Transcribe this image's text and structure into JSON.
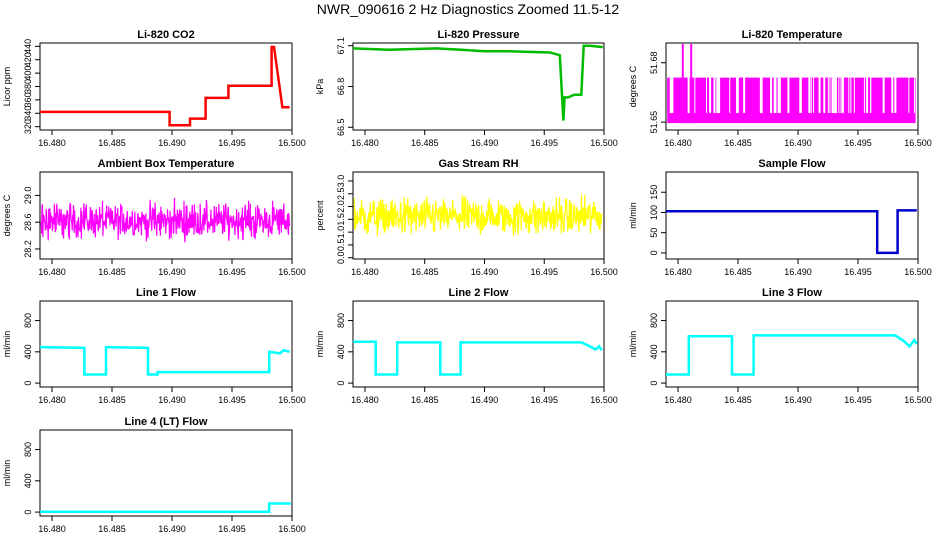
{
  "page": {
    "title": "NWR_090616  2 Hz Diagnostics Zoomed 11.5-12"
  },
  "chart_data": [
    {
      "id": "co2",
      "type": "line",
      "title": "Li-820 CO2",
      "ylabel": "Licor ppm",
      "color": "#ff0000",
      "xlim": [
        16.479,
        16.5
      ],
      "ylim": [
        315,
        445
      ],
      "yticks": [
        "320",
        "340",
        "360",
        "380",
        "400",
        "420",
        "440"
      ],
      "xticks": [
        "16.480",
        "16.485",
        "16.490",
        "16.495",
        "16.500"
      ],
      "series": [
        {
          "x": [
            16.479,
            16.4898,
            16.4898,
            16.4915,
            16.4915,
            16.4928,
            16.4928,
            16.4947,
            16.4947,
            16.4983,
            16.4983,
            16.4985,
            16.4992,
            16.4998
          ],
          "y": [
            342,
            342,
            322,
            322,
            332,
            332,
            363,
            363,
            381,
            381,
            439,
            439,
            349,
            349
          ]
        }
      ]
    },
    {
      "id": "pressure",
      "type": "line",
      "title": "Li-820 Pressure",
      "ylabel": "kPa",
      "color": "#00bb00",
      "xlim": [
        16.479,
        16.5
      ],
      "ylim": [
        66.48,
        67.12
      ],
      "yticks": [
        "66.5",
        "66.8",
        "67.1"
      ],
      "xticks": [
        "16.480",
        "16.485",
        "16.490",
        "16.495",
        "16.500"
      ],
      "series": [
        {
          "x": [
            16.479,
            16.482,
            16.486,
            16.488,
            16.49,
            16.492,
            16.4955,
            16.4963,
            16.4966,
            16.4967,
            16.497,
            16.4975,
            16.4981,
            16.4983,
            16.4988,
            16.4999
          ],
          "y": [
            67.08,
            67.07,
            67.08,
            67.07,
            67.06,
            67.06,
            67.05,
            67.03,
            66.55,
            66.72,
            66.72,
            66.74,
            66.74,
            67.1,
            67.1,
            67.09
          ]
        }
      ]
    },
    {
      "id": "licor_temp",
      "type": "line",
      "title": "Li-820 Temperature",
      "ylabel": "degrees C",
      "color": "#ff00ff",
      "xlim": [
        16.479,
        16.5
      ],
      "ylim": [
        51.646,
        51.69
      ],
      "yticks": [
        "51.65",
        "51.68"
      ],
      "xticks": [
        "16.480",
        "16.485",
        "16.490",
        "16.495",
        "16.500"
      ],
      "series": [
        {
          "low": 51.6495,
          "high": 51.6725,
          "spike": 51.6895,
          "spike_x": [
            16.4804,
            16.4811
          ]
        }
      ]
    },
    {
      "id": "box_temp",
      "type": "line",
      "title": "Ambient Box Temperature",
      "ylabel": "degrees C",
      "color": "#ff00ff",
      "xlim": [
        16.479,
        16.5
      ],
      "ylim": [
        28.05,
        29.35
      ],
      "yticks": [
        "28.2",
        "28.6",
        "29.0"
      ],
      "xticks": [
        "16.480",
        "16.485",
        "16.490",
        "16.495",
        "16.500"
      ],
      "series": [
        {
          "mean": 28.62,
          "noise": 0.13
        }
      ]
    },
    {
      "id": "rh",
      "type": "line",
      "title": "Gas Stream RH",
      "ylabel": "percent",
      "color": "#ffff00",
      "xlim": [
        16.479,
        16.5
      ],
      "ylim": [
        -0.05,
        3.35
      ],
      "yticks": [
        "0.0",
        "0.5",
        "1.0",
        "1.5",
        "2.0",
        "2.5",
        "3.0"
      ],
      "xticks": [
        "16.480",
        "16.485",
        "16.490",
        "16.495",
        "16.500"
      ],
      "series": [
        {
          "mean": 1.6,
          "noise": 0.35
        }
      ]
    },
    {
      "id": "sample_flow",
      "type": "line",
      "title": "Sample Flow",
      "ylabel": "ml/min",
      "color": "#0000cc",
      "xlim": [
        16.479,
        16.5
      ],
      "ylim": [
        -15,
        200
      ],
      "yticks": [
        "0",
        "50",
        "100",
        "150"
      ],
      "xticks": [
        "16.480",
        "16.485",
        "16.490",
        "16.495",
        "16.500"
      ],
      "series": [
        {
          "x": [
            16.479,
            16.4966,
            16.4966,
            16.4983,
            16.4983,
            16.4999
          ],
          "y": [
            103,
            103,
            0,
            0,
            105,
            105
          ]
        }
      ]
    },
    {
      "id": "line1",
      "type": "line",
      "title": "Line 1 Flow",
      "ylabel": "ml/min",
      "color": "#00ffff",
      "xlim": [
        16.479,
        16.5
      ],
      "ylim": [
        -50,
        1050
      ],
      "yticks": [
        "0",
        "400",
        "800"
      ],
      "xticks": [
        "16.480",
        "16.485",
        "16.490",
        "16.495",
        "16.500"
      ],
      "series": [
        {
          "x": [
            16.479,
            16.4827,
            16.4827,
            16.4845,
            16.4845,
            16.488,
            16.488,
            16.4888,
            16.4888,
            16.4981,
            16.4981,
            16.499,
            16.4993,
            16.4998
          ],
          "y": [
            460,
            450,
            110,
            110,
            460,
            450,
            110,
            110,
            140,
            140,
            400,
            380,
            420,
            400
          ]
        }
      ]
    },
    {
      "id": "line2",
      "type": "line",
      "title": "Line 2 Flow",
      "ylabel": "ml/min",
      "color": "#00ffff",
      "xlim": [
        16.479,
        16.5
      ],
      "ylim": [
        -50,
        1050
      ],
      "yticks": [
        "0",
        "400",
        "800"
      ],
      "xticks": [
        "16.480",
        "16.485",
        "16.490",
        "16.495",
        "16.500"
      ],
      "series": [
        {
          "x": [
            16.479,
            16.4809,
            16.4809,
            16.4827,
            16.4827,
            16.4863,
            16.4863,
            16.488,
            16.488,
            16.4981,
            16.4988,
            16.4993,
            16.4996,
            16.4998
          ],
          "y": [
            530,
            530,
            110,
            110,
            520,
            520,
            110,
            110,
            520,
            520,
            470,
            430,
            470,
            420
          ]
        }
      ]
    },
    {
      "id": "line3",
      "type": "line",
      "title": "Line 3 Flow",
      "ylabel": "ml/min",
      "color": "#00ffff",
      "xlim": [
        16.479,
        16.5
      ],
      "ylim": [
        -50,
        1050
      ],
      "yticks": [
        "0",
        "400",
        "800"
      ],
      "xticks": [
        "16.480",
        "16.485",
        "16.490",
        "16.495",
        "16.500"
      ],
      "series": [
        {
          "x": [
            16.479,
            16.4809,
            16.4809,
            16.4845,
            16.4845,
            16.4863,
            16.4863,
            16.4981,
            16.4988,
            16.4993,
            16.4997,
            16.4999
          ],
          "y": [
            110,
            110,
            600,
            600,
            110,
            110,
            610,
            610,
            540,
            470,
            550,
            500
          ]
        }
      ]
    },
    {
      "id": "line4",
      "type": "line",
      "title": "Line 4 (LT) Flow",
      "ylabel": "ml/min",
      "color": "#00ffff",
      "xlim": [
        16.479,
        16.5
      ],
      "ylim": [
        -50,
        1050
      ],
      "yticks": [
        "0",
        "400",
        "800"
      ],
      "xticks": [
        "16.480",
        "16.485",
        "16.490",
        "16.495",
        "16.500"
      ],
      "series": [
        {
          "x": [
            16.479,
            16.4981,
            16.4981,
            16.4999
          ],
          "y": [
            5,
            5,
            110,
            110
          ]
        }
      ]
    }
  ]
}
